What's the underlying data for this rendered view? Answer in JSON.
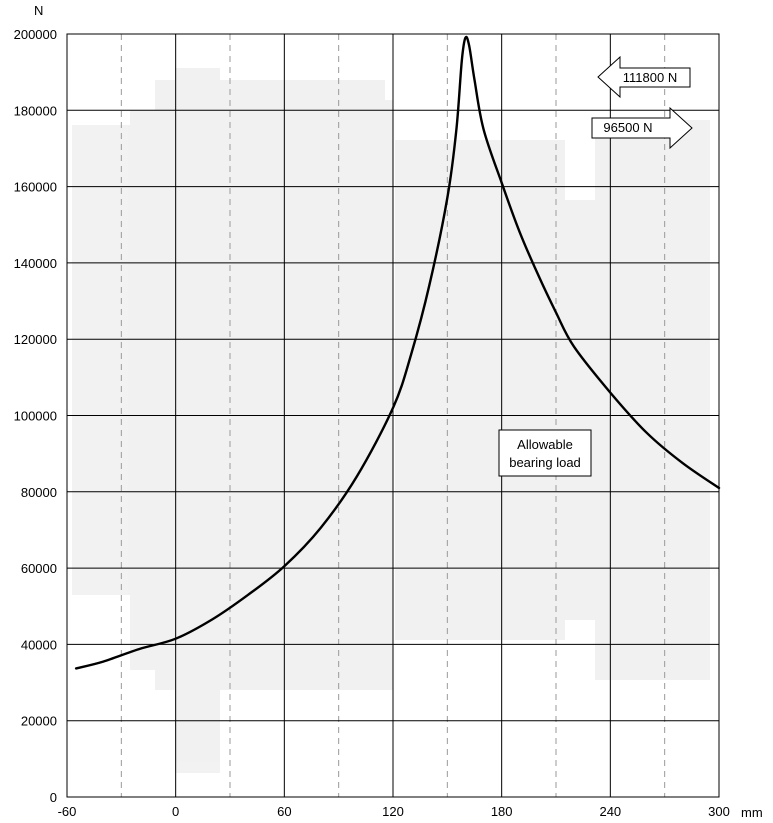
{
  "chart_data": {
    "type": "line",
    "title": "",
    "xlabel": "mm",
    "ylabel": "N",
    "xlim": [
      -60,
      300
    ],
    "ylim": [
      0,
      200000
    ],
    "x_ticks": [
      "-60",
      "0",
      "60",
      "120",
      "180",
      "240",
      "300"
    ],
    "y_ticks": [
      "0",
      "20000",
      "40000",
      "60000",
      "80000",
      "100000",
      "120000",
      "140000",
      "160000",
      "180000",
      "200000"
    ],
    "grid": true,
    "series": [
      {
        "name": "",
        "color": "#000000",
        "points": [
          [
            -55,
            33700
          ],
          [
            -40,
            35500
          ],
          [
            -20,
            38800
          ],
          [
            0,
            41500
          ],
          [
            20,
            46500
          ],
          [
            40,
            53000
          ],
          [
            60,
            60500
          ],
          [
            80,
            70500
          ],
          [
            100,
            84000
          ],
          [
            120,
            102000
          ],
          [
            130,
            116000
          ],
          [
            140,
            134000
          ],
          [
            150,
            157000
          ],
          [
            155,
            175000
          ],
          [
            158,
            193000
          ],
          [
            160,
            199000
          ],
          [
            162,
            197000
          ],
          [
            165,
            188000
          ],
          [
            170,
            175000
          ],
          [
            180,
            161000
          ],
          [
            190,
            148000
          ],
          [
            200,
            137000
          ],
          [
            210,
            127000
          ],
          [
            220,
            118000
          ],
          [
            240,
            106000
          ],
          [
            260,
            95500
          ],
          [
            280,
            87500
          ],
          [
            300,
            81000
          ]
        ]
      }
    ],
    "annotations": {
      "bearing_label_line1": "Allowable",
      "bearing_label_line2": "bearing load",
      "force_left": "111800 N",
      "force_right": "96500 N"
    }
  }
}
